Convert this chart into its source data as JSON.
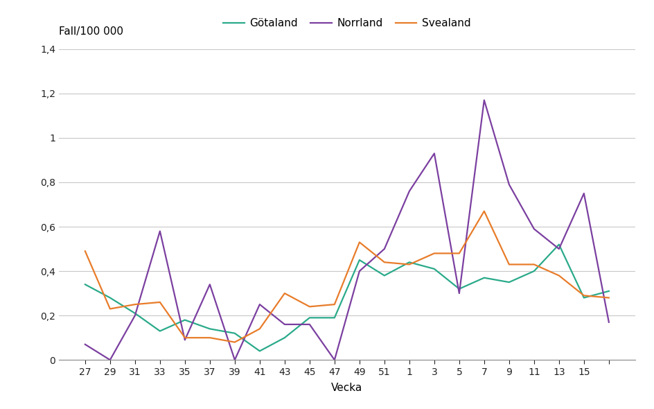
{
  "x_labels": [
    "27",
    "29",
    "31",
    "33",
    "35",
    "37",
    "39",
    "41",
    "43",
    "45",
    "47",
    "49",
    "51",
    "1",
    "3",
    "5",
    "7",
    "9",
    "11",
    "13",
    "15",
    ""
  ],
  "gotaland": [
    0.34,
    0.28,
    0.21,
    0.13,
    0.18,
    0.14,
    0.12,
    0.04,
    0.1,
    0.19,
    0.19,
    0.45,
    0.38,
    0.44,
    0.41,
    0.32,
    0.37,
    0.35,
    0.4,
    0.52,
    0.28,
    0.31
  ],
  "norrland": [
    0.07,
    0.0,
    0.2,
    0.58,
    0.09,
    0.34,
    0.0,
    0.25,
    0.16,
    0.16,
    0.0,
    0.4,
    0.5,
    0.76,
    0.93,
    0.3,
    1.17,
    0.79,
    0.59,
    0.5,
    0.75,
    0.17
  ],
  "svealand": [
    0.49,
    0.23,
    0.25,
    0.26,
    0.1,
    0.1,
    0.08,
    0.14,
    0.3,
    0.24,
    0.25,
    0.53,
    0.44,
    0.43,
    0.48,
    0.48,
    0.67,
    0.43,
    0.43,
    0.38,
    0.29,
    0.28
  ],
  "gotaland_color": "#2aaa8a",
  "norrland_color": "#7b3fa0",
  "svealand_color": "#e87c2a",
  "ylabel": "Fall/100 000",
  "xlabel": "Vecka",
  "ylim": [
    0,
    1.4
  ],
  "yticks": [
    0,
    0.2,
    0.4,
    0.6,
    0.8,
    1.0,
    1.2,
    1.4
  ],
  "ytick_labels": [
    "0",
    "0,2",
    "0,4",
    "0,6",
    "0,8",
    "1",
    "1,2",
    "1,4"
  ],
  "legend_labels": [
    "Götaland",
    "Norrland",
    "Svealand"
  ],
  "background_color": "#ffffff",
  "grid_color": "#c8c8c8",
  "line_width": 1.6,
  "axis_fontsize": 11,
  "tick_fontsize": 10,
  "legend_fontsize": 11
}
